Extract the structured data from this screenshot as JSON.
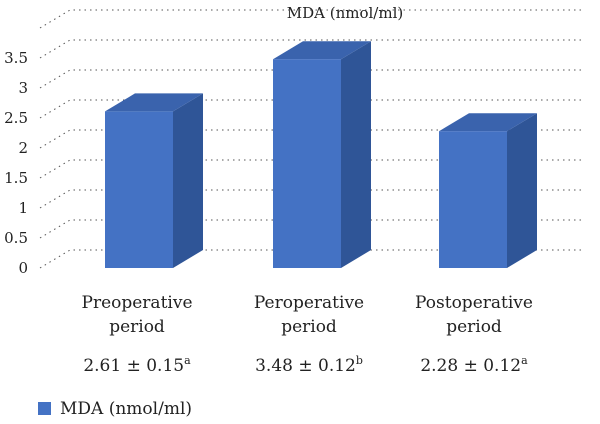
{
  "chart_data": {
    "type": "bar",
    "title": "MDA (nmol/ml)",
    "categories": [
      [
        "Preoperative",
        "period"
      ],
      [
        "Peroperative",
        "period"
      ],
      [
        "Postoperative",
        "period"
      ]
    ],
    "series": [
      {
        "name": "MDA (nmol/ml)",
        "values": [
          2.61,
          3.48,
          2.28
        ],
        "color": "#4472c4"
      }
    ],
    "value_labels": [
      {
        "text": "2.61 ± 0.15",
        "sup": "a"
      },
      {
        "text": "3.48 ± 0.12",
        "sup": "b"
      },
      {
        "text": "2.28 ± 0.12",
        "sup": "a"
      }
    ],
    "yticks": [
      "0",
      "0.5",
      "1",
      "1.5",
      "2",
      "2.5",
      "3",
      "3.5"
    ],
    "ylim": [
      0,
      4
    ],
    "xlabel": "",
    "ylabel": "",
    "grid": true,
    "legend": "bottom-left",
    "colors": {
      "bar_front": "#4472c4",
      "bar_side": "#2f5597",
      "bar_top": "#3a63ad"
    }
  }
}
